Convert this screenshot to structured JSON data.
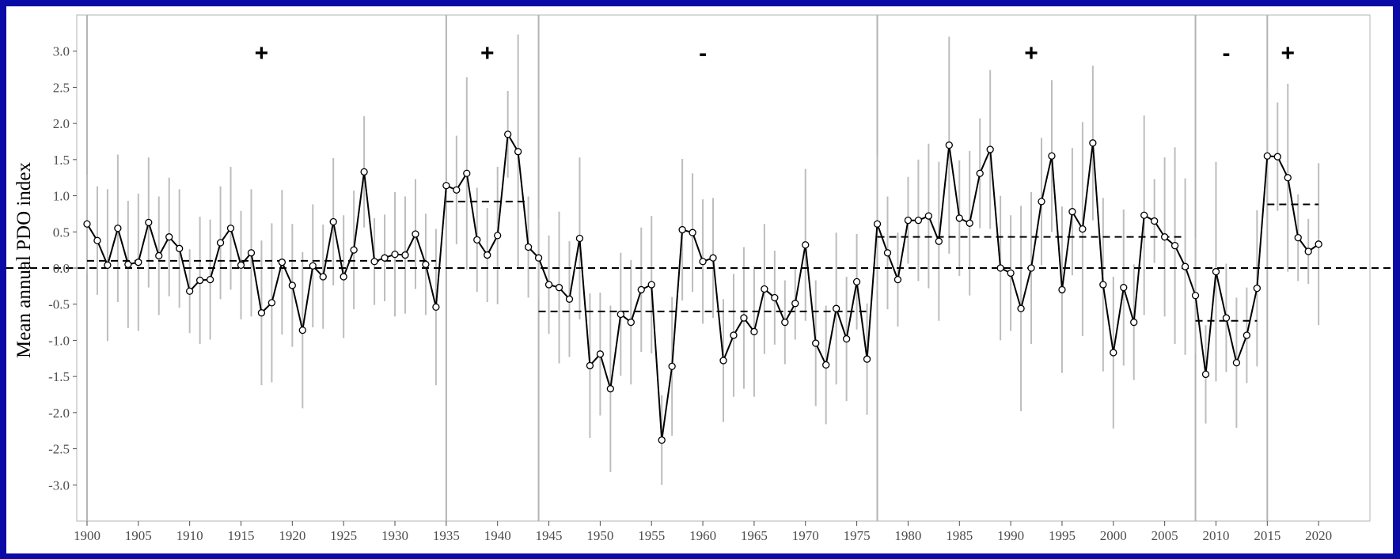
{
  "chart_data": {
    "type": "line",
    "title": "",
    "xlabel": "",
    "ylabel": "Mean annual PDO index",
    "xlim": [
      1899,
      2025
    ],
    "ylim": [
      -3.5,
      3.5
    ],
    "x_ticks": [
      1900,
      1905,
      1910,
      1915,
      1920,
      1925,
      1930,
      1935,
      1940,
      1945,
      1950,
      1955,
      1960,
      1965,
      1970,
      1975,
      1980,
      1985,
      1990,
      1995,
      2000,
      2005,
      2010,
      2015,
      2020
    ],
    "x_tick_labels": [
      "1900",
      "1905",
      "1910",
      "1915",
      "1920",
      "1925",
      "1930",
      "1935",
      "1940",
      "1945",
      "1950",
      "1955",
      "1960",
      "1965",
      "1970",
      "1975",
      "1980",
      "1985",
      "1990",
      "1995",
      "2000",
      "2005",
      "2010",
      "2015",
      "2020"
    ],
    "y_ticks": [
      -3.0,
      -2.5,
      -2.0,
      -1.5,
      -1.0,
      -0.5,
      0.0,
      0.5,
      1.0,
      1.5,
      2.0,
      2.5,
      3.0
    ],
    "y_tick_labels": [
      "-3.0",
      "-2.5",
      "-2.0",
      "-1.5",
      "-1.0",
      "-0.5",
      "0.0",
      "0.5",
      "1.0",
      "1.5",
      "2.0",
      "2.5",
      "3.0"
    ],
    "grid": false,
    "zero_line": {
      "y": 0.0,
      "style": "dashed"
    },
    "series": [
      {
        "x": [
          1900,
          1901,
          1902,
          1903,
          1904,
          1905,
          1906,
          1907,
          1908,
          1909,
          1910,
          1911,
          1912,
          1913,
          1914,
          1915,
          1916,
          1917,
          1918,
          1919,
          1920,
          1921,
          1922,
          1923,
          1924,
          1925,
          1926,
          1927,
          1928,
          1929,
          1930,
          1931,
          1932,
          1933,
          1934,
          1935,
          1936,
          1937,
          1938,
          1939,
          1940,
          1941,
          1942,
          1943,
          1944,
          1945,
          1946,
          1947,
          1948,
          1949,
          1950,
          1951,
          1952,
          1953,
          1954,
          1955,
          1956,
          1957,
          1958,
          1959,
          1960,
          1961,
          1962,
          1963,
          1964,
          1965,
          1966,
          1967,
          1968,
          1969,
          1970,
          1971,
          1972,
          1973,
          1974,
          1975,
          1976,
          1977,
          1978,
          1979,
          1980,
          1981,
          1982,
          1983,
          1984,
          1985,
          1986,
          1987,
          1988,
          1989,
          1990,
          1991,
          1992,
          1993,
          1994,
          1995,
          1996,
          1997,
          1998,
          1999,
          2000,
          2001,
          2002,
          2003,
          2004,
          2005,
          2006,
          2007,
          2008,
          2009,
          2010,
          2011,
          2012,
          2013,
          2014,
          2015,
          2016,
          2017,
          2018,
          2019,
          2020
        ],
        "values": [
          0.61,
          0.38,
          0.04,
          0.55,
          0.05,
          0.08,
          0.63,
          0.17,
          0.43,
          0.27,
          -0.32,
          -0.17,
          -0.16,
          0.35,
          0.55,
          0.04,
          0.21,
          -0.62,
          -0.48,
          0.08,
          -0.24,
          -0.86,
          0.03,
          -0.12,
          0.64,
          -0.12,
          0.25,
          1.33,
          0.09,
          0.14,
          0.19,
          0.18,
          0.47,
          0.05,
          -0.54,
          1.14,
          1.08,
          1.31,
          0.39,
          0.18,
          0.45,
          1.85,
          1.61,
          0.29,
          0.14,
          -0.23,
          -0.27,
          -0.43,
          0.41,
          -1.35,
          -1.19,
          -1.67,
          -0.64,
          -0.75,
          -0.3,
          -0.23,
          -2.38,
          -1.36,
          0.53,
          0.49,
          0.09,
          0.14,
          -1.28,
          -0.93,
          -0.69,
          -0.88,
          -0.29,
          -0.41,
          -0.75,
          -0.49,
          0.32,
          -1.04,
          -1.34,
          -0.56,
          -0.98,
          -0.19,
          -1.26,
          0.61,
          0.21,
          -0.16,
          0.66,
          0.66,
          0.72,
          0.37,
          1.7,
          0.69,
          0.62,
          1.31,
          1.64,
          0.0,
          -0.07,
          -0.56,
          0.0,
          0.92,
          1.55,
          -0.3,
          0.78,
          0.54,
          1.73,
          -0.23,
          -1.17,
          -0.27,
          -0.75,
          0.73,
          0.65,
          0.43,
          0.31,
          0.02,
          -0.38,
          -1.47,
          -0.05,
          -0.69,
          -1.31,
          -0.93,
          -0.28,
          1.55,
          1.54,
          1.25,
          0.42,
          0.23,
          0.33
        ],
        "error_bars_approx": [
          0.68,
          0.75,
          1.05,
          1.02,
          0.88,
          0.95,
          0.9,
          0.82,
          0.82,
          0.82,
          0.58,
          0.88,
          0.83,
          0.78,
          0.85,
          0.75,
          0.88,
          1.0,
          1.1,
          1.0,
          0.85,
          1.08,
          0.85,
          0.72,
          0.88,
          0.85,
          0.82,
          0.77,
          0.6,
          0.6,
          0.86,
          0.81,
          0.76,
          0.7,
          1.08,
          0.85,
          0.75,
          1.33,
          0.72,
          0.65,
          0.95,
          0.6,
          1.62,
          0.7,
          0.55,
          0.68,
          1.05,
          0.8,
          1.12,
          1.0,
          0.85,
          1.15,
          0.85,
          0.86,
          0.86,
          0.95,
          0.62,
          0.96,
          0.98,
          0.82,
          0.86,
          0.83,
          0.85,
          0.85,
          0.98,
          0.9,
          0.9,
          0.65,
          0.58,
          0.5,
          1.05,
          0.87,
          0.82,
          1.05,
          0.86,
          0.66,
          0.77,
          0.93,
          0.78,
          0.65,
          0.6,
          0.84,
          1.0,
          1.1,
          1.5,
          0.8,
          1.0,
          0.76,
          1.1,
          1.0,
          0.8,
          1.42,
          1.05,
          0.88,
          1.05,
          1.15,
          0.88,
          1.48,
          1.07,
          1.2,
          1.05,
          1.08,
          0.8,
          1.38,
          0.58,
          1.1,
          1.36,
          1.22,
          0.8,
          0.68,
          1.52,
          0.75,
          0.9,
          0.66,
          1.08,
          0.95,
          0.75,
          1.3,
          0.6,
          0.45,
          1.12
        ]
      }
    ],
    "phase_boundaries": [
      1900,
      1935,
      1944,
      1977,
      2008,
      2015
    ],
    "phase_means": [
      {
        "start": 1900,
        "end": 1934,
        "value": 0.1
      },
      {
        "start": 1935,
        "end": 1943,
        "value": 0.92
      },
      {
        "start": 1944,
        "end": 1976,
        "value": -0.6
      },
      {
        "start": 1977,
        "end": 2007,
        "value": 0.43
      },
      {
        "start": 2008,
        "end": 2014,
        "value": -0.73
      },
      {
        "start": 2015,
        "end": 2020,
        "value": 0.88
      }
    ],
    "phase_signs": [
      {
        "x": 1917,
        "label": "+"
      },
      {
        "x": 1939,
        "label": "+"
      },
      {
        "x": 1960,
        "label": "-"
      },
      {
        "x": 1992,
        "label": "+"
      },
      {
        "x": 2011,
        "label": "-"
      },
      {
        "x": 2017,
        "label": "+"
      }
    ],
    "colors": {
      "background": "#0a0aa6",
      "line": "#000000",
      "error_bar": "#bdbdbd",
      "phase_line": "#b3b3b3",
      "frame": "#b3b3b3",
      "text": "#4d4d4d"
    }
  }
}
